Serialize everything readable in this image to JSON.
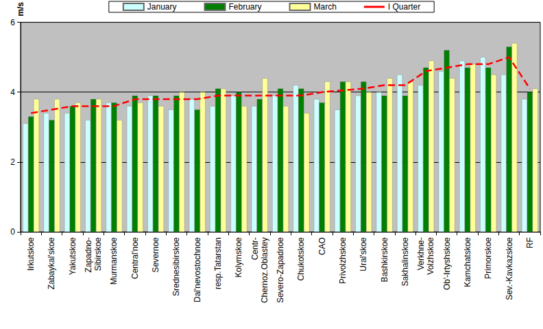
{
  "chart_data": {
    "type": "bar",
    "y_label": "m/s",
    "categories": [
      "Irkutskoe",
      "Zabaykal'skoe",
      "Yakutskoe",
      "Zapadno-\nSibirskoe",
      "Murmanskoe",
      "Central'noe",
      "Severnoe",
      "Srednesibirskoe",
      "Dal'nevostochnoe",
      "resp.Tatarstan",
      "Kolymskoe",
      "Centr-\nChernoz.Oblastey",
      "Severo-Zapadnoe",
      "Chukotskoe",
      "CAO",
      "Privolzhskoe",
      "Ural'skoe",
      "Bashkirskoe",
      "Sakhalinskoe",
      "Verkhne-\nVolzhskoe",
      "Ob'-Irtyshskoe",
      "Kamchatskoe",
      "Primorskoe",
      "Sev.-Kavkazskoe",
      "RF"
    ],
    "series": [
      {
        "name": "January",
        "type": "bar",
        "color": "#ccffff",
        "values": [
          3.1,
          3.4,
          3.4,
          3.2,
          3.7,
          3.6,
          3.9,
          3.5,
          3.8,
          3.6,
          3.9,
          3.6,
          3.9,
          4.2,
          3.8,
          3.5,
          3.9,
          4.0,
          4.5,
          4.2,
          4.6,
          4.9,
          5.0,
          4.5,
          3.8
        ]
      },
      {
        "name": "February",
        "type": "bar",
        "color": "#008000",
        "values": [
          3.3,
          3.2,
          3.6,
          3.8,
          3.7,
          3.9,
          3.9,
          3.9,
          3.5,
          4.1,
          4.0,
          3.8,
          4.1,
          4.1,
          3.7,
          4.3,
          4.3,
          3.9,
          3.9,
          4.7,
          5.2,
          4.7,
          4.7,
          5.3,
          4.0
        ]
      },
      {
        "name": "March",
        "type": "bar",
        "color": "#ffff99",
        "values": [
          3.8,
          3.8,
          3.7,
          3.8,
          3.2,
          3.7,
          3.6,
          4.0,
          4.0,
          4.1,
          3.6,
          4.4,
          3.6,
          3.4,
          4.3,
          4.3,
          4.0,
          4.4,
          4.3,
          4.9,
          4.4,
          4.8,
          4.5,
          5.4,
          4.1
        ]
      },
      {
        "name": "I Quarter",
        "type": "line",
        "color": "#ff0000",
        "line_style": "dashed",
        "values": [
          3.4,
          3.5,
          3.6,
          3.6,
          3.6,
          3.8,
          3.8,
          3.8,
          3.8,
          3.9,
          3.9,
          3.9,
          3.9,
          3.9,
          4.0,
          4.05,
          4.1,
          4.2,
          4.2,
          4.6,
          4.7,
          4.8,
          4.8,
          5.0,
          4.1
        ]
      }
    ],
    "ylim": [
      0,
      6
    ],
    "yticks": [
      0,
      2,
      4,
      6
    ],
    "grid": true,
    "legend": "top"
  }
}
